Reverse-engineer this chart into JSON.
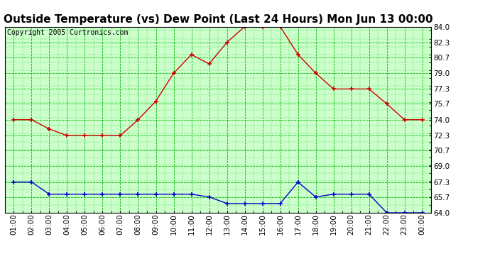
{
  "title": "Outside Temperature (vs) Dew Point (Last 24 Hours) Mon Jun 13 00:00",
  "copyright_text": "Copyright 2005 Curtronics.com",
  "x_labels": [
    "01:00",
    "02:00",
    "03:00",
    "04:00",
    "05:00",
    "06:00",
    "07:00",
    "08:00",
    "09:00",
    "10:00",
    "11:00",
    "12:00",
    "13:00",
    "14:00",
    "15:00",
    "16:00",
    "17:00",
    "18:00",
    "19:00",
    "20:00",
    "21:00",
    "22:00",
    "23:00",
    "00:00"
  ],
  "temp_data": [
    74.0,
    74.0,
    73.0,
    72.3,
    72.3,
    72.3,
    72.3,
    74.0,
    76.0,
    79.0,
    81.0,
    80.0,
    82.3,
    84.0,
    84.0,
    84.0,
    81.0,
    79.0,
    77.3,
    77.3,
    77.3,
    75.7,
    74.0,
    74.0
  ],
  "dew_data": [
    67.3,
    67.3,
    66.0,
    66.0,
    66.0,
    66.0,
    66.0,
    66.0,
    66.0,
    66.0,
    66.0,
    65.7,
    65.0,
    65.0,
    65.0,
    65.0,
    67.3,
    65.7,
    66.0,
    66.0,
    66.0,
    64.0,
    64.0,
    64.0
  ],
  "temp_color": "#cc0000",
  "dew_color": "#0000cc",
  "bg_color": "#ffffff",
  "plot_bg_color": "#ccffcc",
  "grid_color": "#00bb00",
  "title_fontsize": 11,
  "axis_fontsize": 7.5,
  "copyright_fontsize": 7,
  "ylim_min": 64.0,
  "ylim_max": 84.0,
  "ytick_values": [
    64.0,
    65.7,
    67.3,
    69.0,
    70.7,
    72.3,
    74.0,
    75.7,
    77.3,
    79.0,
    80.7,
    82.3,
    84.0
  ]
}
